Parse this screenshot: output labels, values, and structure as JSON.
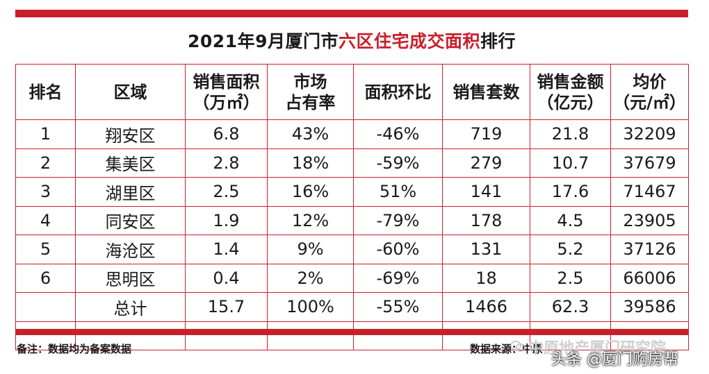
{
  "title": {
    "prefix": "2021年9月厦门市",
    "highlight1": "六区",
    "middle": "住宅成交面积",
    "suffix": "排行"
  },
  "table": {
    "headers": [
      {
        "line1": "排名",
        "line2": ""
      },
      {
        "line1": "区域",
        "line2": ""
      },
      {
        "line1": "销售面积",
        "line2": "（万㎡）"
      },
      {
        "line1": "市场",
        "line2": "占有率"
      },
      {
        "line1": "面积环比",
        "line2": ""
      },
      {
        "line1": "销售套数",
        "line2": ""
      },
      {
        "line1": "销售金额",
        "line2": "（亿元）"
      },
      {
        "line1": "均价",
        "line2": "（元/㎡）"
      }
    ],
    "rows": [
      [
        "1",
        "翔安区",
        "6.8",
        "43%",
        "-46%",
        "719",
        "21.8",
        "32209"
      ],
      [
        "2",
        "集美区",
        "2.8",
        "18%",
        "-59%",
        "279",
        "10.7",
        "37679"
      ],
      [
        "3",
        "湖里区",
        "2.5",
        "16%",
        "51%",
        "141",
        "17.6",
        "71467"
      ],
      [
        "4",
        "同安区",
        "1.9",
        "12%",
        "-79%",
        "178",
        "4.5",
        "23905"
      ],
      [
        "5",
        "海沧区",
        "1.4",
        "9%",
        "-60%",
        "131",
        "5.2",
        "37126"
      ],
      [
        "6",
        "思明区",
        "0.4",
        "2%",
        "-69%",
        "18",
        "2.5",
        "66006"
      ],
      [
        "",
        "总计",
        "15.7",
        "100%",
        "-55%",
        "1466",
        "62.3",
        "39586"
      ]
    ]
  },
  "footer": {
    "note": "备注：数据均为备案数据",
    "source": "数据来源：中原",
    "watermark_brand": "中原地产厦门研究院",
    "watermark_credit": "头条 @厦门购房帮"
  },
  "colors": {
    "accent": "#c8202b"
  }
}
